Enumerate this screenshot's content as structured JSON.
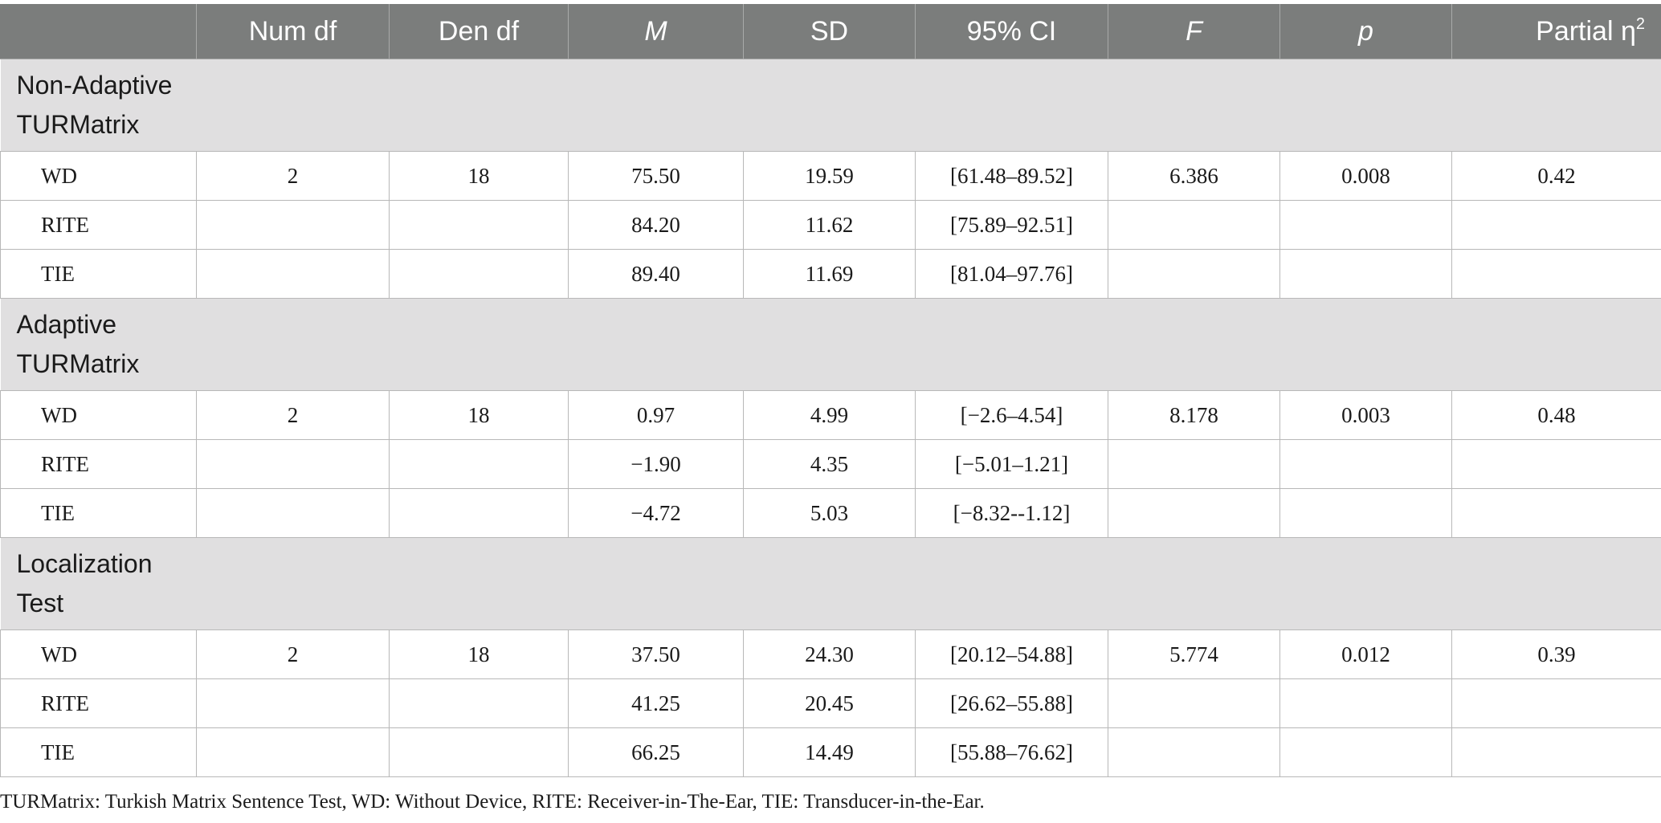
{
  "table": {
    "headers": [
      "",
      "Num df",
      "Den df",
      "M",
      "SD",
      "95% CI",
      "F",
      "p",
      "Partial η",
      "2"
    ],
    "sections": [
      {
        "title": "Non-Adaptive TURMatrix",
        "rows": [
          [
            "WD",
            "2",
            "18",
            "75.50",
            "19.59",
            "[61.48–89.52]",
            "6.386",
            "0.008",
            "0.42"
          ],
          [
            "RITE",
            "",
            "",
            "84.20",
            "11.62",
            "[75.89–92.51]",
            "",
            "",
            ""
          ],
          [
            "TIE",
            "",
            "",
            "89.40",
            "11.69",
            "[81.04–97.76]",
            "",
            "",
            ""
          ]
        ]
      },
      {
        "title": "Adaptive TURMatrix",
        "rows": [
          [
            "WD",
            "2",
            "18",
            "0.97",
            "4.99",
            "[−2.6–4.54]",
            "8.178",
            "0.003",
            "0.48"
          ],
          [
            "RITE",
            "",
            "",
            "−1.90",
            "4.35",
            "[−5.01–1.21]",
            "",
            "",
            ""
          ],
          [
            "TIE",
            "",
            "",
            "−4.72",
            "5.03",
            "[−8.32--1.12]",
            "",
            "",
            ""
          ]
        ]
      },
      {
        "title": "Localization Test",
        "rows": [
          [
            "WD",
            "2",
            "18",
            "37.50",
            "24.30",
            "[20.12–54.88]",
            "5.774",
            "0.012",
            "0.39"
          ],
          [
            "RITE",
            "",
            "",
            "41.25",
            "20.45",
            "[26.62–55.88]",
            "",
            "",
            ""
          ],
          [
            "TIE",
            "",
            "",
            "66.25",
            "14.49",
            "[55.88–76.62]",
            "",
            "",
            ""
          ]
        ]
      }
    ]
  },
  "footnote": "TURMatrix: Turkish Matrix Sentence Test, WD: Without Device, RITE: Receiver-in-The-Ear, TIE: Transducer-in-the-Ear.",
  "colors": {
    "header_bg": "#7b7d7c",
    "section_bg": "#e0dfe0",
    "border": "#b8b8b8"
  }
}
